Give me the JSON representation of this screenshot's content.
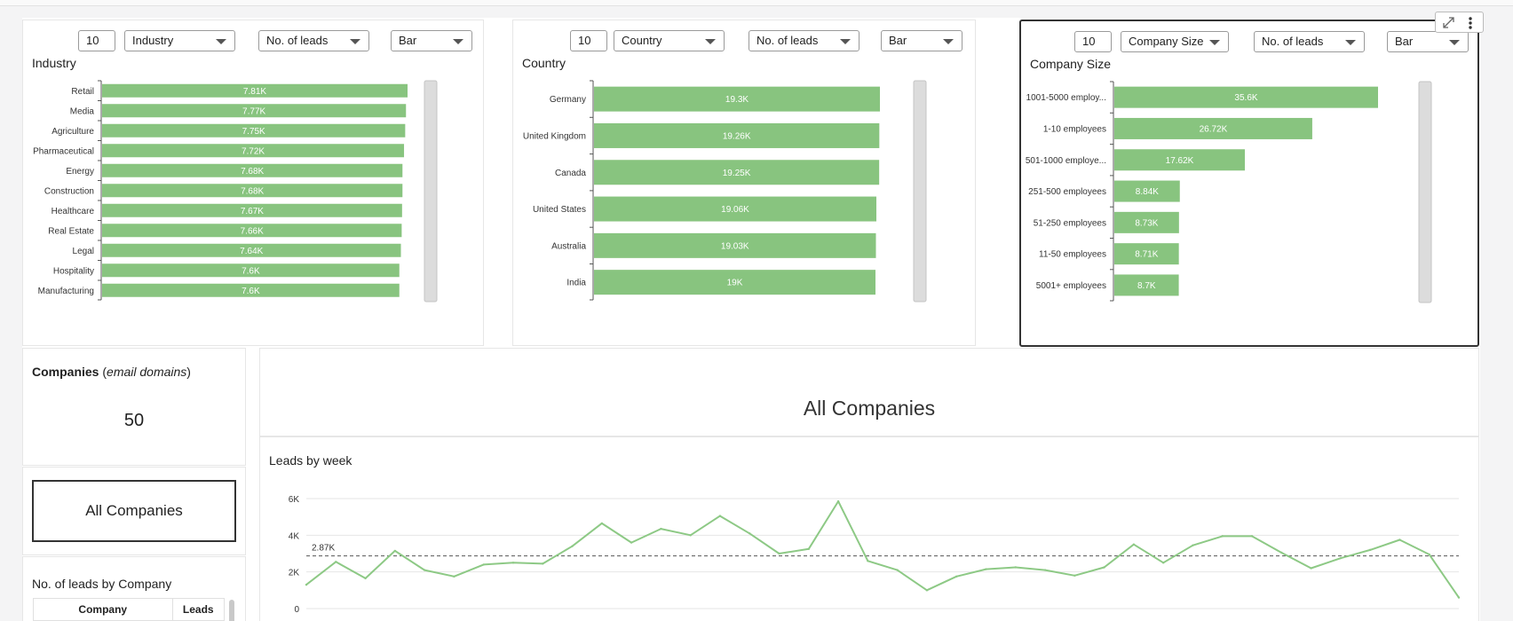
{
  "panels": [
    {
      "title": "Industry",
      "limit": "10",
      "dimension": "Industry",
      "measure": "No. of leads",
      "chart_type": "Bar"
    },
    {
      "title": "Country",
      "limit": "10",
      "dimension": "Country",
      "measure": "No. of leads",
      "chart_type": "Bar"
    },
    {
      "title": "Company Size",
      "limit": "10",
      "dimension": "Company Size",
      "measure": "No. of leads",
      "chart_type": "Bar"
    }
  ],
  "kpi": {
    "title_bold": "Companies",
    "title_paren_open": " (",
    "title_italic": "email domains",
    "title_paren_close": ")",
    "value": "50"
  },
  "filter_button": "All Companies",
  "heading": "All Companies",
  "table": {
    "title": "No. of leads by Company",
    "columns": [
      "Company",
      "Leads"
    ]
  },
  "colors": {
    "bar": "#88c47f",
    "line": "#8dc985",
    "grid": "#e6e6e6",
    "reference": "#555555"
  },
  "icons": [
    "expand-icon",
    "kebab-menu-icon",
    "chevron-down-icon"
  ],
  "chart_data": [
    {
      "type": "bar",
      "orientation": "horizontal",
      "title": "Industry",
      "categories": [
        "Retail",
        "Media",
        "Agriculture",
        "Pharmaceutical",
        "Energy",
        "Construction",
        "Healthcare",
        "Real Estate",
        "Legal",
        "Hospitality",
        "Manufacturing"
      ],
      "values": [
        7810,
        7770,
        7750,
        7720,
        7680,
        7680,
        7670,
        7660,
        7640,
        7600,
        7600
      ],
      "labels": [
        "7.81K",
        "7.77K",
        "7.75K",
        "7.72K",
        "7.68K",
        "7.68K",
        "7.67K",
        "7.66K",
        "7.64K",
        "7.6K",
        "7.6K"
      ],
      "xlim": [
        0,
        7810
      ]
    },
    {
      "type": "bar",
      "orientation": "horizontal",
      "title": "Country",
      "categories": [
        "Germany",
        "United Kingdom",
        "Canada",
        "United States",
        "Australia",
        "India"
      ],
      "values": [
        19300,
        19260,
        19250,
        19060,
        19030,
        19000
      ],
      "labels": [
        "19.3K",
        "19.26K",
        "19.25K",
        "19.06K",
        "19.03K",
        "19K"
      ],
      "xlim": [
        0,
        19300
      ]
    },
    {
      "type": "bar",
      "orientation": "horizontal",
      "title": "Company Size",
      "categories": [
        "1001-5000 employ...",
        "1-10 employees",
        "501-1000 employe...",
        "251-500 employees",
        "51-250 employees",
        "11-50 employees",
        "5001+ employees"
      ],
      "values": [
        35600,
        26720,
        17620,
        8840,
        8730,
        8710,
        8700
      ],
      "labels": [
        "35.6K",
        "26.72K",
        "17.62K",
        "8.84K",
        "8.73K",
        "8.71K",
        "8.7K"
      ],
      "xlim": [
        0,
        35600
      ]
    },
    {
      "type": "line",
      "title": "Leads by week",
      "ylim": [
        0,
        6000
      ],
      "yticks": [
        0,
        2000,
        4000,
        6000
      ],
      "ytick_labels": [
        "0",
        "2K",
        "4K",
        "6K"
      ],
      "reference_line": {
        "value": 2870,
        "label": "2.87K"
      },
      "values": [
        1300,
        2550,
        1650,
        3150,
        2100,
        1750,
        2400,
        2500,
        2450,
        3400,
        4650,
        3600,
        4350,
        4000,
        5050,
        4100,
        3000,
        3250,
        5850,
        2600,
        2100,
        1000,
        1750,
        2150,
        2250,
        2100,
        1800,
        2250,
        3500,
        2500,
        3450,
        3950,
        3950,
        3050,
        2200,
        2750,
        3200,
        3750,
        2950,
        600
      ]
    }
  ]
}
